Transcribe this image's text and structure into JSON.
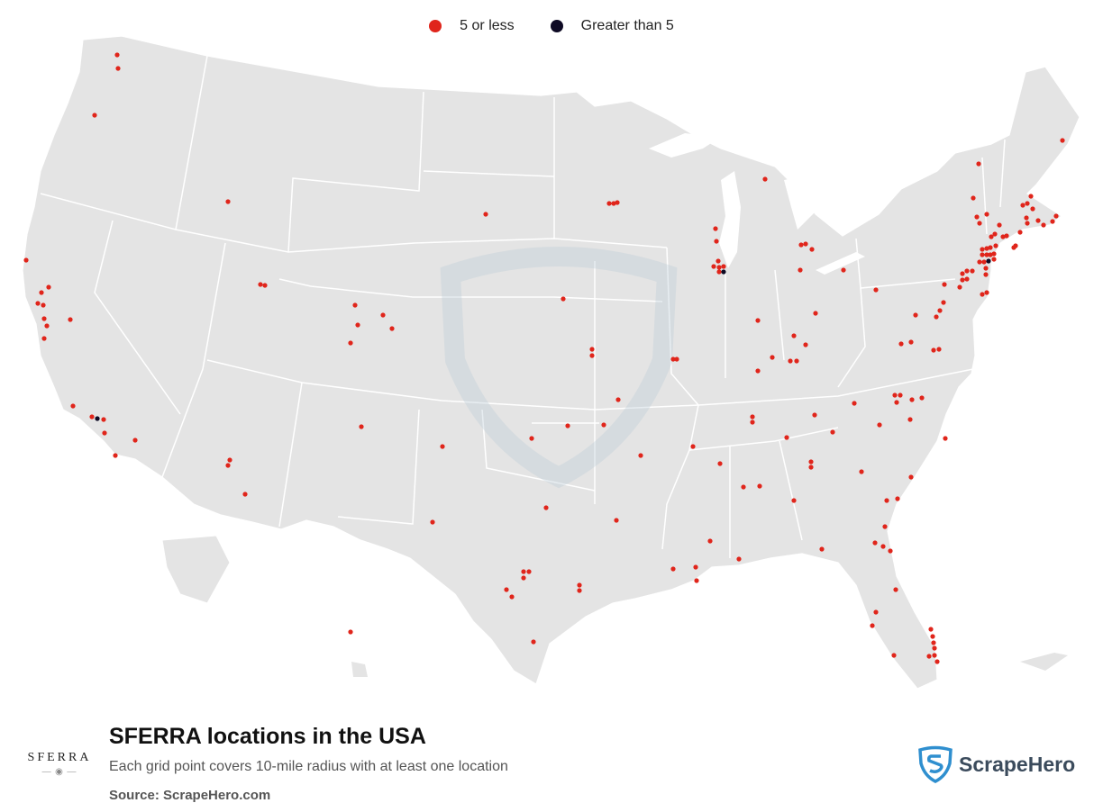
{
  "legend": {
    "items": [
      {
        "label": "5 or less",
        "color": "#e0251b"
      },
      {
        "label": "Greater than 5",
        "color": "#0e0a24"
      }
    ]
  },
  "footer": {
    "title": "SFERRA locations in the USA",
    "subtitle": "Each grid point covers 10-mile radius with at least one location",
    "source": "Source: ScrapeHero.com"
  },
  "brand": {
    "logo_text": "SFERRA",
    "logo_mark": "— ◉ —"
  },
  "scrapehero": {
    "name": "ScrapeHero",
    "accent": "#2f8fcf"
  },
  "map": {
    "land_color": "#e4e4e4",
    "border_color": "#ffffff",
    "markers_small": [
      [
        130,
        61
      ],
      [
        131,
        76
      ],
      [
        105,
        128
      ],
      [
        29,
        289
      ],
      [
        46,
        325
      ],
      [
        54,
        319
      ],
      [
        42,
        337
      ],
      [
        48,
        339
      ],
      [
        49,
        354
      ],
      [
        52,
        362
      ],
      [
        78,
        355
      ],
      [
        49,
        376
      ],
      [
        81,
        451
      ],
      [
        102,
        463
      ],
      [
        115,
        466
      ],
      [
        116,
        481
      ],
      [
        150,
        489
      ],
      [
        128,
        506
      ],
      [
        253,
        224
      ],
      [
        289,
        316
      ],
      [
        294,
        317
      ],
      [
        394,
        339
      ],
      [
        397,
        361
      ],
      [
        425,
        350
      ],
      [
        435,
        365
      ],
      [
        389,
        381
      ],
      [
        401,
        474
      ],
      [
        255,
        511
      ],
      [
        253,
        517
      ],
      [
        272,
        549
      ],
      [
        389,
        702
      ],
      [
        539,
        238
      ],
      [
        625,
        332
      ],
      [
        657,
        388
      ],
      [
        657,
        395
      ],
      [
        686,
        444
      ],
      [
        630,
        473
      ],
      [
        590,
        487
      ],
      [
        491,
        496
      ],
      [
        670,
        472
      ],
      [
        711,
        506
      ],
      [
        606,
        564
      ],
      [
        480,
        580
      ],
      [
        684,
        578
      ],
      [
        581,
        635
      ],
      [
        587,
        635
      ],
      [
        581,
        642
      ],
      [
        562,
        655
      ],
      [
        568,
        663
      ],
      [
        643,
        650
      ],
      [
        643,
        656
      ],
      [
        592,
        713
      ],
      [
        676,
        226
      ],
      [
        681,
        226
      ],
      [
        685,
        225
      ],
      [
        747,
        399
      ],
      [
        751,
        399
      ],
      [
        769,
        496
      ],
      [
        799,
        515
      ],
      [
        788,
        601
      ],
      [
        747,
        632
      ],
      [
        772,
        630
      ],
      [
        773,
        645
      ],
      [
        820,
        621
      ],
      [
        825,
        541
      ],
      [
        843,
        540
      ],
      [
        881,
        556
      ],
      [
        912,
        610
      ],
      [
        849,
        199
      ],
      [
        794,
        254
      ],
      [
        795,
        268
      ],
      [
        797,
        290
      ],
      [
        792,
        296
      ],
      [
        798,
        297
      ],
      [
        803,
        296
      ],
      [
        798,
        302
      ],
      [
        889,
        272
      ],
      [
        894,
        271
      ],
      [
        901,
        277
      ],
      [
        888,
        300
      ],
      [
        936,
        300
      ],
      [
        841,
        356
      ],
      [
        905,
        348
      ],
      [
        881,
        373
      ],
      [
        894,
        383
      ],
      [
        877,
        401
      ],
      [
        884,
        401
      ],
      [
        857,
        397
      ],
      [
        841,
        412
      ],
      [
        835,
        463
      ],
      [
        835,
        469
      ],
      [
        873,
        486
      ],
      [
        904,
        461
      ],
      [
        924,
        480
      ],
      [
        900,
        513
      ],
      [
        900,
        519
      ],
      [
        956,
        524
      ],
      [
        976,
        472
      ],
      [
        1010,
        466
      ],
      [
        948,
        448
      ],
      [
        993,
        439
      ],
      [
        999,
        439
      ],
      [
        995,
        447
      ],
      [
        1012,
        444
      ],
      [
        1023,
        442
      ],
      [
        972,
        322
      ],
      [
        1000,
        382
      ],
      [
        1011,
        380
      ],
      [
        1036,
        389
      ],
      [
        1042,
        388
      ],
      [
        1016,
        350
      ],
      [
        1039,
        352
      ],
      [
        1043,
        345
      ],
      [
        1047,
        336
      ],
      [
        1048,
        316
      ],
      [
        1065,
        319
      ],
      [
        1068,
        304
      ],
      [
        1073,
        301
      ],
      [
        1079,
        301
      ],
      [
        1068,
        311
      ],
      [
        1073,
        310
      ],
      [
        1090,
        327
      ],
      [
        1095,
        325
      ],
      [
        1049,
        487
      ],
      [
        1011,
        530
      ],
      [
        996,
        554
      ],
      [
        984,
        556
      ],
      [
        982,
        585
      ],
      [
        980,
        607
      ],
      [
        988,
        612
      ],
      [
        971,
        603
      ],
      [
        994,
        655
      ],
      [
        972,
        680
      ],
      [
        968,
        695
      ],
      [
        992,
        728
      ],
      [
        1033,
        699
      ],
      [
        1035,
        707
      ],
      [
        1036,
        714
      ],
      [
        1037,
        720
      ],
      [
        1037,
        728
      ],
      [
        1031,
        729
      ],
      [
        1040,
        735
      ],
      [
        1086,
        182
      ],
      [
        1080,
        220
      ],
      [
        1095,
        238
      ],
      [
        1084,
        241
      ],
      [
        1087,
        248
      ],
      [
        1104,
        260
      ],
      [
        1100,
        263
      ],
      [
        1109,
        250
      ],
      [
        1113,
        263
      ],
      [
        1117,
        262
      ],
      [
        1132,
        258
      ],
      [
        1127,
        273
      ],
      [
        1125,
        275
      ],
      [
        1090,
        277
      ],
      [
        1095,
        276
      ],
      [
        1099,
        275
      ],
      [
        1105,
        273
      ],
      [
        1090,
        283
      ],
      [
        1095,
        283
      ],
      [
        1099,
        283
      ],
      [
        1103,
        282
      ],
      [
        1087,
        291
      ],
      [
        1092,
        291
      ],
      [
        1103,
        288
      ],
      [
        1094,
        298
      ],
      [
        1094,
        305
      ],
      [
        1135,
        228
      ],
      [
        1140,
        226
      ],
      [
        1144,
        218
      ],
      [
        1146,
        232
      ],
      [
        1139,
        242
      ],
      [
        1140,
        248
      ],
      [
        1152,
        245
      ],
      [
        1158,
        250
      ],
      [
        1168,
        246
      ],
      [
        1172,
        240
      ],
      [
        1179,
        156
      ]
    ],
    "markers_large": [
      [
        108,
        465
      ],
      [
        803,
        302
      ],
      [
        1097,
        290
      ]
    ]
  }
}
